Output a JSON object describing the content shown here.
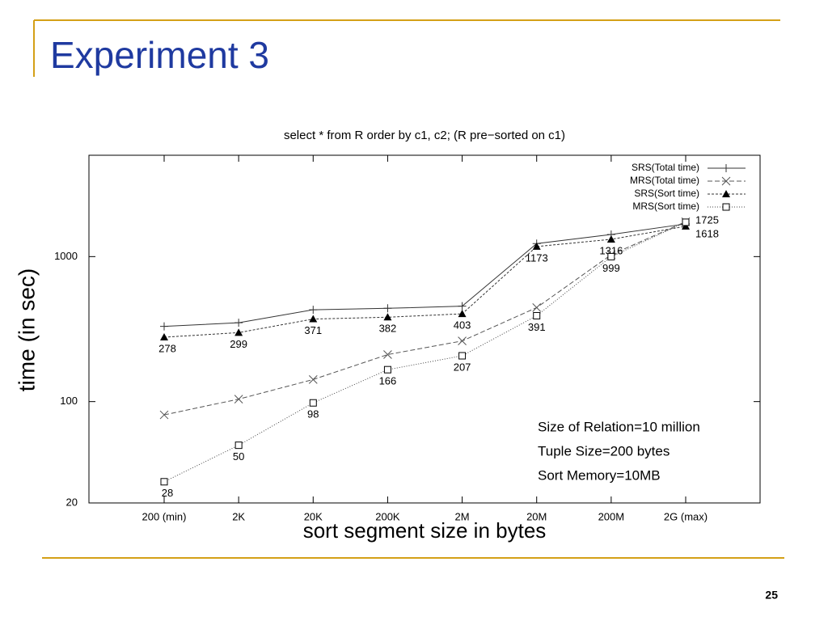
{
  "slide": {
    "title": "Experiment 3",
    "page_number": "25"
  },
  "chart_data": {
    "type": "line",
    "title": "select * from R order by c1, c2; (R pre−sorted on c1)",
    "x_label": "sort segment size in bytes",
    "y_label": "time (in sec)",
    "categories": [
      "200 (min)",
      "2K",
      "20K",
      "200K",
      "2M",
      "20M",
      "200M",
      "2G (max)"
    ],
    "log_y": true,
    "ylim": [
      20,
      5000
    ],
    "yticks": [
      20,
      100,
      1000
    ],
    "legend": "top right",
    "series": [
      {
        "name": "SRS(Total time)",
        "color": "#333333",
        "dash": "",
        "marker": "plus",
        "values": [
          330,
          350,
          430,
          440,
          455,
          1230,
          1420,
          1680
        ]
      },
      {
        "name": "MRS(Total time)",
        "color": "#555555",
        "dash": "6 3",
        "marker": "cross",
        "values": [
          81,
          104,
          142,
          211,
          262,
          445,
          1030,
          1740
        ]
      },
      {
        "name": "SRS(Sort time)",
        "color": "#333333",
        "dash": "3 2",
        "marker": "triangle",
        "values": [
          278,
          299,
          371,
          382,
          403,
          1173,
          1316,
          1618
        ],
        "show_labels": true
      },
      {
        "name": "MRS(Sort time)",
        "color": "#444444",
        "dash": "1 2",
        "marker": "square",
        "values": [
          28,
          50,
          98,
          166,
          207,
          391,
          999,
          1725
        ],
        "show_labels": true
      }
    ],
    "annotations": [
      "Size of Relation=10 million",
      "Tuple Size=200 bytes",
      "Sort Memory=10MB"
    ]
  }
}
